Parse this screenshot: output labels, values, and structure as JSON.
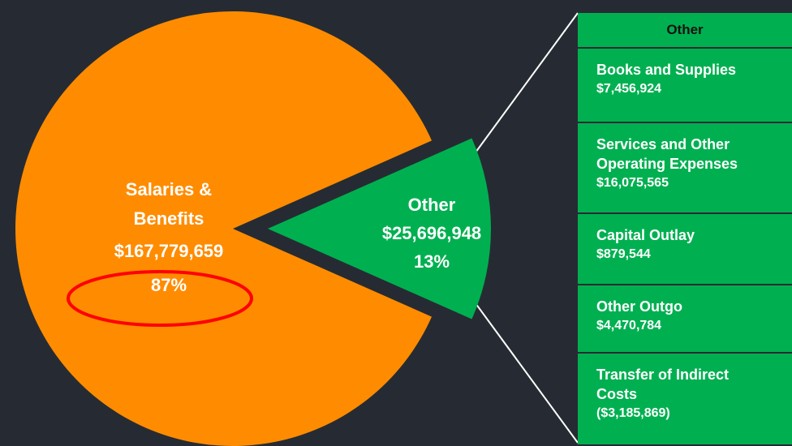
{
  "chart_data": {
    "type": "pie",
    "categories": [
      "Salaries & Benefits",
      "Other"
    ],
    "values": [
      167779659,
      25696948
    ],
    "value_labels": [
      "$167,779,659",
      "$25,696,948"
    ],
    "percentages": [
      87,
      13
    ],
    "percentage_labels": [
      "87%",
      "13%"
    ],
    "colors": [
      "#ff8c00",
      "#00b050"
    ],
    "breakdown": {
      "title": "Other",
      "color": "#00b050",
      "items": [
        {
          "name": "Books and Supplies",
          "value": 7456924,
          "value_label": "$7,456,924"
        },
        {
          "name": "Services and Other Operating Expenses",
          "value": 16075565,
          "value_label": "$16,075,565"
        },
        {
          "name": "Capital Outlay",
          "value": 879544,
          "value_label": "$879,544"
        },
        {
          "name": "Other Outgo",
          "value": 4470784,
          "value_label": "$4,470,784"
        },
        {
          "name": "Transfer of Indirect Costs",
          "value": -3185869,
          "value_label": "($3,185,869)"
        }
      ]
    }
  }
}
